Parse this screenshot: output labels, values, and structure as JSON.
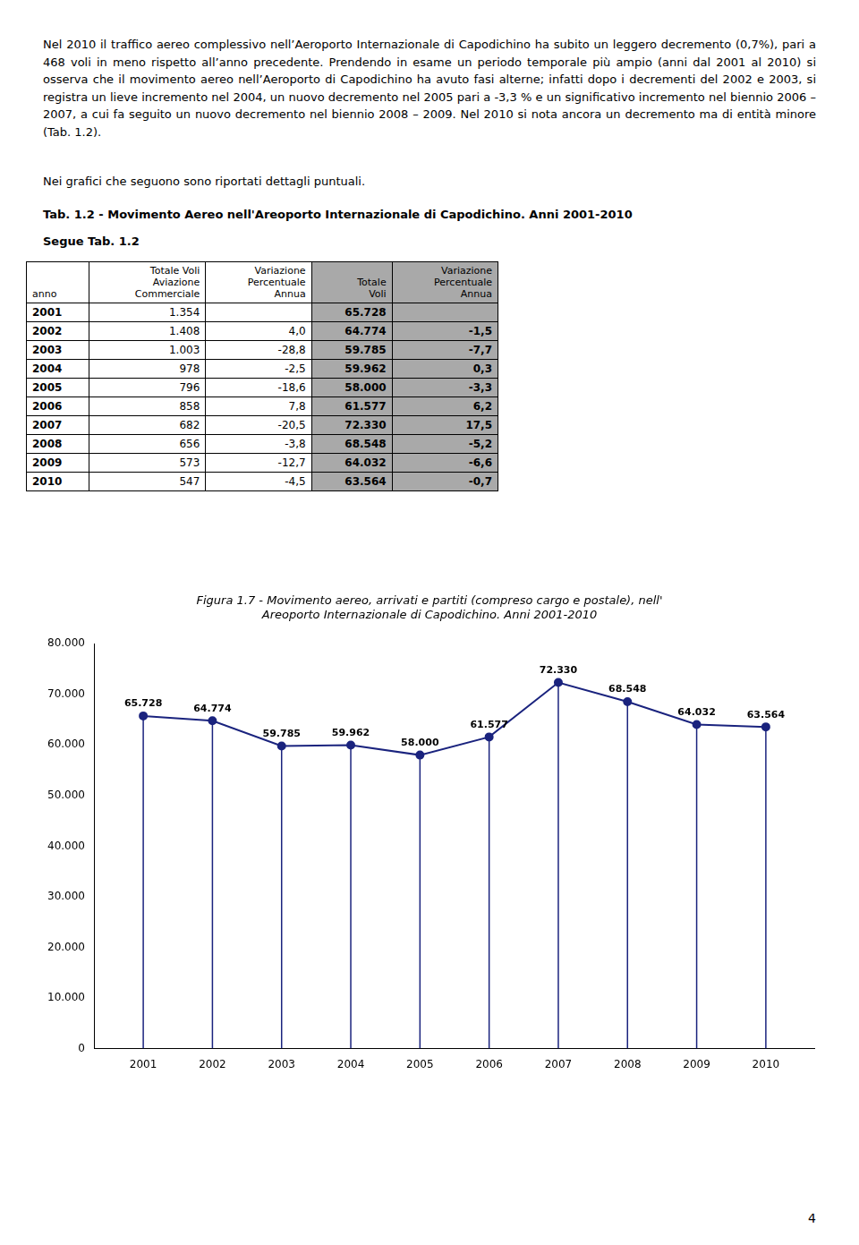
{
  "page_text_top": "Nel 2010 il traffico aereo complessivo nell’Aeroporto Internazionale di Capodichino ha subito un leggero decremento (0,7%), pari a 468 voli in meno rispetto all’anno precedente. Prendendo in esame un periodo temporale più ampio (anni dal 2001 al 2010) si osserva che il movimento aereo nell’Aeroporto di Capodichino ha avuto fasi alterne; infatti dopo i decrementi del 2002 e 2003, si registra un lieve incremento nel 2004, un nuovo decremento nel 2005 pari a -3,3 % e un significativo incremento nel biennio 2006 – 2007, a cui fa seguito un nuovo decremento nel biennio 2008 – 2009. Nel 2010 si nota ancora un decremento ma di entità minore (Tab. 1.2).",
  "text_grafici": "Nei grafici che seguono sono riportati dettagli puntuali.",
  "table": {
    "title": "Tab. 1.2 - Movimento Aereo nell'Areoporto Internazionale di Capodichino. Anni 2001-2010",
    "subtitle": "Segue Tab. 1.2",
    "columns": [
      "anno",
      "Totale Voli\nAviazione\nCommerciale",
      "Variazione\nPercentuale\nAnnua",
      "Totale\nVoli",
      "Variazione\nPercentuale\nAnnua"
    ],
    "rows": [
      [
        "2001",
        "1.354",
        null,
        "65.728",
        null
      ],
      [
        "2002",
        "1.408",
        "4,0",
        "64.774",
        "-1,5"
      ],
      [
        "2003",
        "1.003",
        "-28,8",
        "59.785",
        "-7,7"
      ],
      [
        "2004",
        "978",
        "-2,5",
        "59.962",
        "0,3"
      ],
      [
        "2005",
        "796",
        "-18,6",
        "58.000",
        "-3,3"
      ],
      [
        "2006",
        "858",
        "7,8",
        "61.577",
        "6,2"
      ],
      [
        "2007",
        "682",
        "-20,5",
        "72.330",
        "17,5"
      ],
      [
        "2008",
        "656",
        "-3,8",
        "68.548",
        "-5,2"
      ],
      [
        "2009",
        "573",
        "-12,7",
        "64.032",
        "-6,6"
      ],
      [
        "2010",
        "547",
        "-4,5",
        "63.564",
        "-0,7"
      ]
    ],
    "color": "#a9a9a9"
  },
  "page_number": "4",
  "chart_data": {
    "type": "line",
    "title": [
      "Figura 1.7 - Movimento aereo, arrivati e partiti (compreso cargo e postale), nell'",
      "Areoporto Internazionale di Capodichino. Anni 2001-2010"
    ],
    "x": [
      2001,
      2002,
      2003,
      2004,
      2005,
      2006,
      2007,
      2008,
      2009,
      2010
    ],
    "values": [
      65728,
      64774,
      59785,
      59962,
      58000,
      61577,
      72330,
      68548,
      64032,
      63564
    ],
    "value_labels": [
      "65.728",
      "64.774",
      "59.785",
      "59.962",
      "58.000",
      "61.577",
      "72.330",
      "68.548",
      "64.032",
      "63.564"
    ],
    "color": "#1a237e",
    "marker": "circle",
    "line_style": "solid",
    "data_labels": true,
    "grid": false,
    "xlim": [
      2000.3,
      2010.7
    ],
    "xticks": [
      2001,
      2002,
      2003,
      2004,
      2005,
      2006,
      2007,
      2008,
      2009,
      2010
    ],
    "ylim": [
      0,
      80000
    ],
    "yticks": [
      0,
      {
        "value": 10000,
        "label": "10.000"
      },
      {
        "value": 20000,
        "label": "20.000"
      },
      {
        "value": 30000,
        "label": "30.000"
      },
      {
        "value": 40000,
        "label": "40.000"
      },
      {
        "value": 50000,
        "label": "50.000"
      },
      {
        "value": 60000,
        "label": "60.000"
      },
      {
        "value": 70000,
        "label": "70.000"
      },
      {
        "value": 80000,
        "label": "80.000"
      }
    ]
  }
}
